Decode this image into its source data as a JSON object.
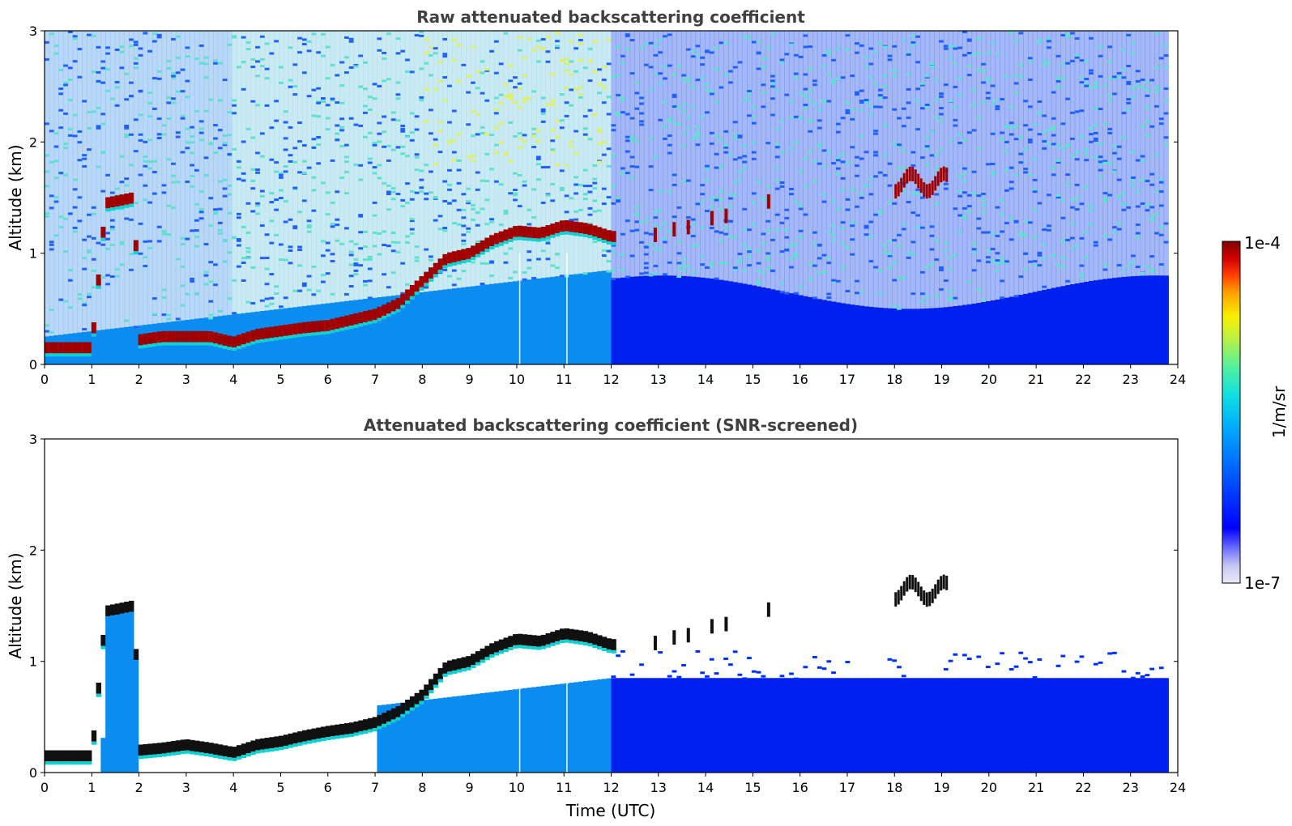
{
  "figure": {
    "panel_top_title": "Raw attenuated backscattering coefficient",
    "panel_bottom_title": "Attenuated backscattering coefficient (SNR-screened)",
    "ylabel": "Altitude (km)",
    "xlabel": "Time (UTC)",
    "colorbar_label": "1/m/sr",
    "colorbar_max_label": "1e-4",
    "colorbar_min_label": "1e-7",
    "colors": {
      "title": "#404040",
      "colormap": [
        "#e8e8f8",
        "#c8c8f0",
        "#8080f0",
        "#0000ff",
        "#0040ff",
        "#0090ff",
        "#00d0f0",
        "#40f0c0",
        "#a0f060",
        "#f0f000",
        "#ffa000",
        "#ff3000",
        "#c00000",
        "#800000"
      ]
    }
  },
  "chart_data": [
    {
      "type": "heatmap",
      "title": "Raw attenuated backscattering coefficient",
      "xlabel": "",
      "ylabel": "Altitude (km)",
      "xlim": [
        0,
        24
      ],
      "ylim": [
        0,
        3
      ],
      "x_ticks": [
        "0",
        "1",
        "2",
        "3",
        "4",
        "5",
        "6",
        "7",
        "8",
        "9",
        "10",
        "11",
        "12",
        "13",
        "14",
        "15",
        "16",
        "17",
        "18",
        "19",
        "20",
        "21",
        "22",
        "23",
        "24"
      ],
      "y_ticks": [
        "0",
        "1",
        "2",
        "3"
      ],
      "data_extent_x": [
        0,
        23.8
      ],
      "colorbar": {
        "label": "1/m/sr",
        "min": "1e-7",
        "max": "1e-4",
        "scale": "log"
      },
      "cloud_layer_altitude_km": [
        [
          0.0,
          0.15
        ],
        [
          0.5,
          0.15
        ],
        [
          1.0,
          0.15
        ],
        [
          1.3,
          1.45
        ],
        [
          1.9,
          1.5
        ],
        [
          2.0,
          0.22
        ],
        [
          2.5,
          0.25
        ],
        [
          3.0,
          0.25
        ],
        [
          3.5,
          0.25
        ],
        [
          4.0,
          0.2
        ],
        [
          4.5,
          0.27
        ],
        [
          5.0,
          0.3
        ],
        [
          5.5,
          0.33
        ],
        [
          6.0,
          0.35
        ],
        [
          6.5,
          0.4
        ],
        [
          7.0,
          0.45
        ],
        [
          7.5,
          0.55
        ],
        [
          8.0,
          0.75
        ],
        [
          8.5,
          0.95
        ],
        [
          9.0,
          1.0
        ],
        [
          9.5,
          1.12
        ],
        [
          10.0,
          1.2
        ],
        [
          10.5,
          1.18
        ],
        [
          11.0,
          1.25
        ],
        [
          11.5,
          1.22
        ],
        [
          12.0,
          1.15
        ]
      ]
    },
    {
      "type": "heatmap",
      "title": "Attenuated backscattering coefficient (SNR-screened)",
      "xlabel": "Time (UTC)",
      "ylabel": "Altitude (km)",
      "xlim": [
        0,
        24
      ],
      "ylim": [
        0,
        3
      ],
      "x_ticks": [
        "0",
        "1",
        "2",
        "3",
        "4",
        "5",
        "6",
        "7",
        "8",
        "9",
        "10",
        "11",
        "12",
        "13",
        "14",
        "15",
        "16",
        "17",
        "18",
        "19",
        "20",
        "21",
        "22",
        "23",
        "24"
      ],
      "y_ticks": [
        "0",
        "1",
        "2",
        "3"
      ],
      "data_extent_x": [
        0,
        23.8
      ],
      "colorbar": {
        "label": "1/m/sr",
        "min": "1e-7",
        "max": "1e-4",
        "scale": "log"
      },
      "cloud_layer_altitude_km": [
        [
          0.0,
          0.15
        ],
        [
          0.5,
          0.15
        ],
        [
          1.0,
          0.15
        ],
        [
          1.3,
          1.45
        ],
        [
          1.9,
          1.5
        ],
        [
          2.0,
          0.2
        ],
        [
          2.5,
          0.22
        ],
        [
          3.0,
          0.25
        ],
        [
          3.5,
          0.22
        ],
        [
          4.0,
          0.18
        ],
        [
          4.5,
          0.25
        ],
        [
          5.0,
          0.28
        ],
        [
          5.5,
          0.33
        ],
        [
          6.0,
          0.37
        ],
        [
          6.5,
          0.4
        ],
        [
          7.0,
          0.45
        ],
        [
          7.5,
          0.55
        ],
        [
          8.0,
          0.7
        ],
        [
          8.5,
          0.95
        ],
        [
          9.0,
          1.0
        ],
        [
          9.5,
          1.12
        ],
        [
          10.0,
          1.2
        ],
        [
          10.5,
          1.18
        ],
        [
          11.0,
          1.25
        ],
        [
          11.5,
          1.22
        ],
        [
          12.0,
          1.15
        ]
      ]
    }
  ]
}
